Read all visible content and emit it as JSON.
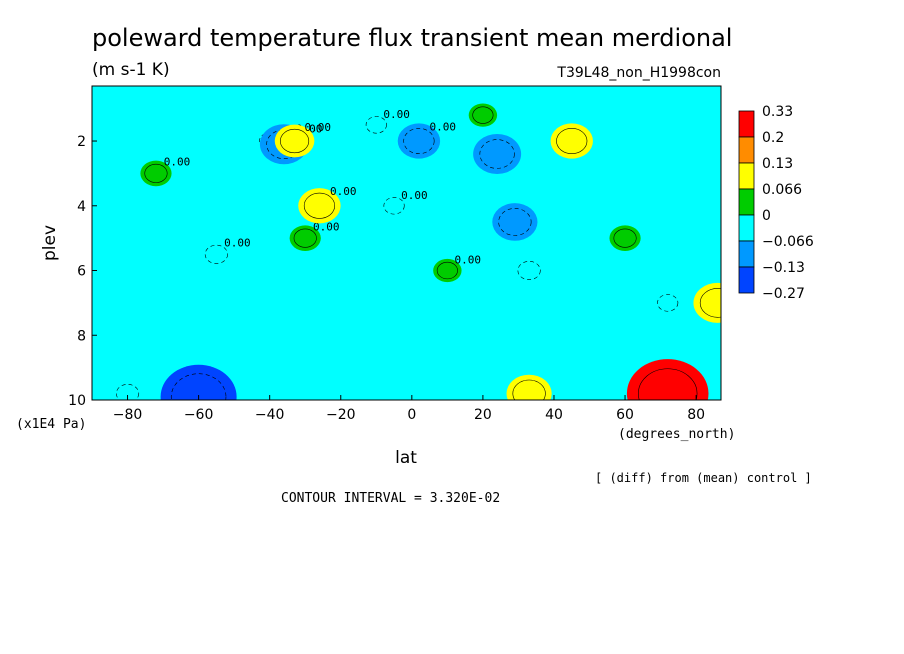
{
  "chart_data": {
    "type": "heatmap",
    "title": "poleward temperature flux transient mean merdional",
    "units": "(m s-1 K)",
    "run_id": "T39L48_non_H1998con",
    "xlabel": "lat",
    "xunits": "(degrees_north)",
    "ylabel": "plev",
    "yunits": "(x1E4 Pa)",
    "xlim": [
      -90,
      87
    ],
    "ylim": [
      0.3,
      10
    ],
    "y_inverted": true,
    "x_ticks": [
      -80,
      -60,
      -40,
      -20,
      0,
      20,
      40,
      60,
      80
    ],
    "x_tick_labels": [
      "−80",
      "−60",
      "−40",
      "−20",
      "0",
      "20",
      "40",
      "60",
      "80"
    ],
    "y_ticks": [
      2,
      4,
      6,
      8,
      10
    ],
    "y_tick_labels": [
      "2",
      "4",
      "6",
      "8",
      "10"
    ],
    "contour_interval_text": "CONTOUR INTERVAL = 3.320E-02",
    "diff_note": "[ (diff) from (mean) control ]",
    "contour_labels": [
      "0.00",
      "0.00",
      "0.00",
      "0.00",
      "0.00",
      "0.00",
      "0.00",
      "0.00",
      "0.00",
      "0.00",
      "0.00"
    ],
    "colorbar": {
      "labels": [
        "0.33",
        "0.2",
        "0.13",
        "0.066",
        "0",
        "−0.066",
        "−0.13",
        "−0.27"
      ],
      "colors": [
        "#ff0000",
        "#ff8c00",
        "#ffff00",
        "#00cc00",
        "#00ffff",
        "#0099ff",
        "#0044ff"
      ]
    },
    "levels": [
      -0.27,
      -0.13,
      -0.066,
      0,
      0.066,
      0.13,
      0.2,
      0.33
    ],
    "fill_colors": [
      "#0044ff",
      "#0099ff",
      "#00ffff",
      "#00cc00",
      "#ffff00",
      "#ff8c00",
      "#ff0000"
    ],
    "regions": [
      {
        "lat": -72,
        "plev": 3.0,
        "value": 0.04
      },
      {
        "lat": -55,
        "plev": 5.5,
        "value": -0.04
      },
      {
        "lat": -40,
        "plev": 2.0,
        "value": -0.03
      },
      {
        "lat": -36,
        "plev": 2.1,
        "value": -0.1
      },
      {
        "lat": -30,
        "plev": 5.0,
        "value": 0.04
      },
      {
        "lat": -26,
        "plev": 4.0,
        "value": 0.08
      },
      {
        "lat": -33,
        "plev": 2.0,
        "value": 0.07
      },
      {
        "lat": -10,
        "plev": 1.5,
        "value": -0.03
      },
      {
        "lat": -5,
        "plev": 4.0,
        "value": -0.03
      },
      {
        "lat": 2,
        "plev": 2.0,
        "value": -0.08
      },
      {
        "lat": 10,
        "plev": 6.0,
        "value": 0.03
      },
      {
        "lat": 20,
        "plev": 1.2,
        "value": 0.03
      },
      {
        "lat": 24,
        "plev": 2.4,
        "value": -0.1
      },
      {
        "lat": 29,
        "plev": 4.5,
        "value": -0.09
      },
      {
        "lat": 33,
        "plev": 6.0,
        "value": -0.04
      },
      {
        "lat": 45,
        "plev": 2.0,
        "value": 0.08
      },
      {
        "lat": 60,
        "plev": 5.0,
        "value": 0.04
      },
      {
        "lat": 72,
        "plev": 7.0,
        "value": -0.03
      },
      {
        "lat": 86,
        "plev": 7.0,
        "value": 0.1
      },
      {
        "lat": -60,
        "plev": 9.9,
        "value": -0.2
      },
      {
        "lat": -80,
        "plev": 9.8,
        "value": -0.04
      },
      {
        "lat": 33,
        "plev": 9.8,
        "value": 0.09
      },
      {
        "lat": 72,
        "plev": 9.8,
        "value": 0.22
      }
    ]
  }
}
